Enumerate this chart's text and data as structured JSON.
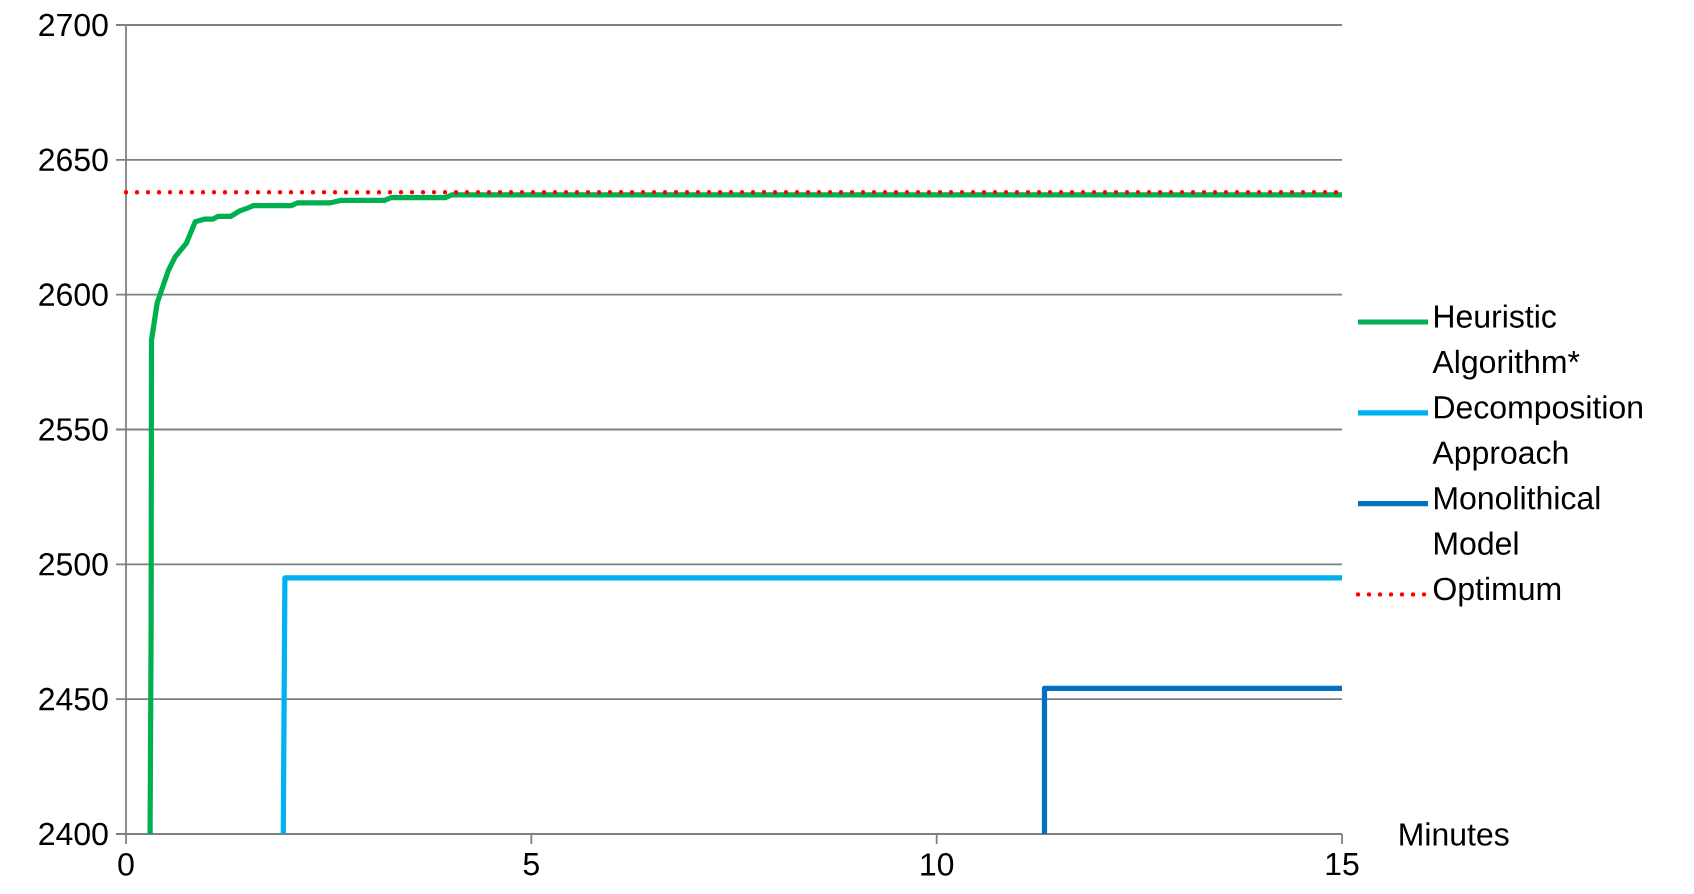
{
  "chart_data": {
    "type": "line",
    "xlabel": "Minutes",
    "xlim": [
      0,
      15
    ],
    "xticks": [
      0,
      5,
      10,
      15
    ],
    "ylim": [
      2400,
      2700
    ],
    "yticks": [
      2400,
      2450,
      2500,
      2550,
      2600,
      2650,
      2700
    ],
    "grid": "y",
    "legend": "right",
    "series": [
      {
        "name": "Heuristic Algorithm*",
        "color": "#00b050",
        "line_style": "solid",
        "x": [
          0.297,
          0.31,
          0.314,
          0.385,
          0.523,
          0.606,
          0.743,
          0.854,
          0.963,
          1.07,
          1.13,
          1.29,
          1.4,
          1.49,
          1.57,
          2.04,
          2.11,
          2.51,
          2.66,
          3.19,
          3.27,
          3.94,
          4.02,
          15
        ],
        "values": [
          2400,
          2479,
          2583,
          2597,
          2609,
          2614,
          2619,
          2627,
          2628,
          2628,
          2629,
          2629,
          2631,
          2632,
          2633,
          2633,
          2634,
          2634,
          2635,
          2635,
          2636,
          2636,
          2637,
          2637
        ]
      },
      {
        "name": "Decomposition Approach",
        "color": "#00b0f0",
        "line_style": "solid",
        "x": [
          1.94,
          1.96,
          15
        ],
        "values": [
          2400,
          2495,
          2495
        ]
      },
      {
        "name": "Monolithical Model",
        "color": "#0070c0",
        "line_style": "solid",
        "x": [
          11.33,
          11.33,
          15
        ],
        "values": [
          2400,
          2454,
          2454
        ]
      },
      {
        "name": "Optimum",
        "color": "#ff0000",
        "line_style": "dotted",
        "x": [
          0,
          15
        ],
        "values": [
          2638,
          2638
        ]
      }
    ]
  }
}
